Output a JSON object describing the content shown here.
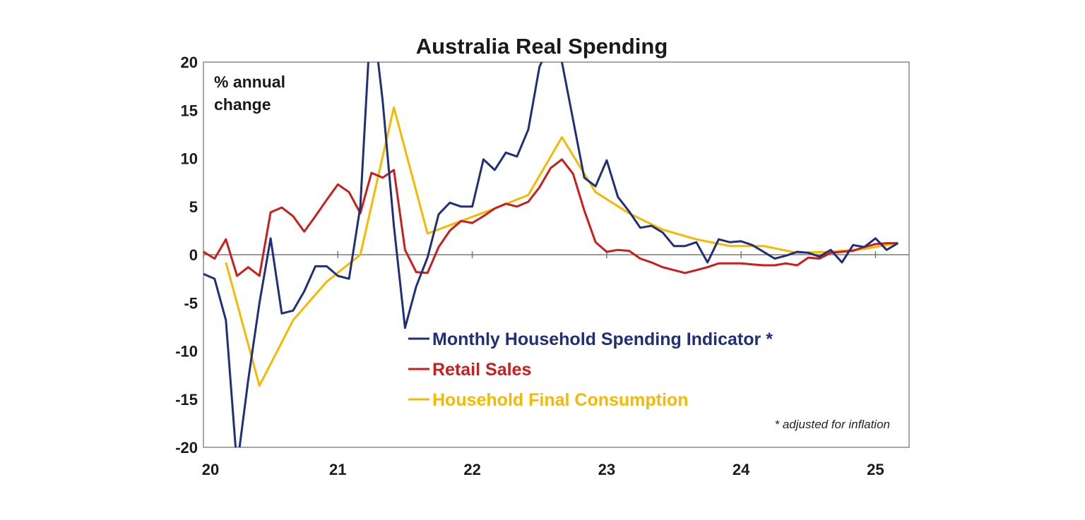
{
  "chart_data": {
    "type": "line",
    "title": "Australia Real Spending",
    "ylabel": "% annual change",
    "ylabel_lines": [
      "% annual",
      "change"
    ],
    "footnote": "* adjusted for inflation",
    "xlim": [
      2020,
      2025.25
    ],
    "ylim": [
      -20,
      20
    ],
    "yticks": [
      20,
      15,
      10,
      5,
      0,
      -5,
      -10,
      -15,
      -20
    ],
    "xticks": [
      {
        "value": 2020,
        "label": "20"
      },
      {
        "value": 2021,
        "label": "21"
      },
      {
        "value": 2022,
        "label": "22"
      },
      {
        "value": 2023,
        "label": "23"
      },
      {
        "value": 2024,
        "label": "24"
      },
      {
        "value": 2025,
        "label": "25"
      }
    ],
    "grid": false,
    "legend_position": "bottom-center",
    "series": [
      {
        "name": "Monthly Household Spending Indicator *",
        "color": "#1f2f7a",
        "x": [
          2020.0,
          2020.083,
          2020.167,
          2020.25,
          2020.333,
          2020.417,
          2020.5,
          2020.583,
          2020.667,
          2020.75,
          2020.833,
          2020.917,
          2021.0,
          2021.083,
          2021.167,
          2021.25,
          2021.333,
          2021.417,
          2021.5,
          2021.583,
          2021.667,
          2021.75,
          2021.833,
          2021.917,
          2022.0,
          2022.083,
          2022.167,
          2022.25,
          2022.333,
          2022.417,
          2022.5,
          2022.583,
          2022.667,
          2022.75,
          2022.833,
          2022.917,
          2023.0,
          2023.083,
          2023.167,
          2023.25,
          2023.333,
          2023.417,
          2023.5,
          2023.583,
          2023.667,
          2023.75,
          2023.833,
          2023.917,
          2024.0,
          2024.083,
          2024.167,
          2024.25,
          2024.333,
          2024.417,
          2024.5,
          2024.583,
          2024.667,
          2024.75,
          2024.833,
          2024.917,
          2025.0,
          2025.083,
          2025.167
        ],
        "values": [
          -2.0,
          -2.5,
          -6.8,
          -22.0,
          -13.0,
          -5.0,
          1.7,
          -6.1,
          -5.8,
          -3.8,
          -1.2,
          -1.2,
          -2.2,
          -2.5,
          5.0,
          26.0,
          16.0,
          3.0,
          -7.6,
          -3.3,
          -0.3,
          4.2,
          5.4,
          5.0,
          5.0,
          9.9,
          8.8,
          10.6,
          10.2,
          13.0,
          19.5,
          22.0,
          20.0,
          14.0,
          8.0,
          7.1,
          9.8,
          6.0,
          4.5,
          2.8,
          3.0,
          2.3,
          0.9,
          0.9,
          1.3,
          -0.8,
          1.6,
          1.3,
          1.4,
          1.0,
          0.3,
          -0.4,
          -0.1,
          0.3,
          0.2,
          -0.2,
          0.5,
          -0.8,
          1.0,
          0.8,
          1.7,
          0.5,
          1.2
        ]
      },
      {
        "name": "Retail Sales",
        "color": "#cc1d1d",
        "x": [
          2020.0,
          2020.083,
          2020.167,
          2020.25,
          2020.333,
          2020.417,
          2020.5,
          2020.583,
          2020.667,
          2020.75,
          2020.833,
          2020.917,
          2021.0,
          2021.083,
          2021.167,
          2021.25,
          2021.333,
          2021.417,
          2021.5,
          2021.583,
          2021.667,
          2021.75,
          2021.833,
          2021.917,
          2022.0,
          2022.083,
          2022.167,
          2022.25,
          2022.333,
          2022.417,
          2022.5,
          2022.583,
          2022.667,
          2022.75,
          2022.833,
          2022.917,
          2023.0,
          2023.083,
          2023.167,
          2023.25,
          2023.333,
          2023.417,
          2023.5,
          2023.583,
          2023.667,
          2023.75,
          2023.833,
          2023.917,
          2024.0,
          2024.083,
          2024.167,
          2024.25,
          2024.333,
          2024.417,
          2024.5,
          2024.583,
          2024.667,
          2024.75,
          2024.833,
          2024.917,
          2025.0,
          2025.083,
          2025.167
        ],
        "values": [
          0.3,
          -0.4,
          1.6,
          -2.2,
          -1.3,
          -2.2,
          4.4,
          4.9,
          4.0,
          2.4,
          4.0,
          5.7,
          7.3,
          6.5,
          4.3,
          8.5,
          8.0,
          8.8,
          0.5,
          -1.8,
          -1.9,
          0.8,
          2.5,
          3.5,
          3.3,
          4.0,
          4.8,
          5.3,
          5.0,
          5.5,
          7.0,
          9.0,
          9.9,
          8.4,
          4.6,
          1.3,
          0.3,
          0.5,
          0.4,
          -0.4,
          -0.8,
          -1.3,
          -1.6,
          -1.9,
          -1.6,
          -1.3,
          -0.9,
          -0.9,
          -0.9,
          -1.0,
          -1.1,
          -1.1,
          -0.9,
          -1.1,
          -0.3,
          -0.4,
          0.2,
          0.3,
          0.4,
          0.8,
          1.1,
          1.2,
          1.2
        ]
      },
      {
        "name": "Household Final Consumption",
        "color": "#f7b900",
        "x": [
          2020.167,
          2020.417,
          2020.667,
          2020.917,
          2021.167,
          2021.417,
          2021.667,
          2021.917,
          2022.167,
          2022.417,
          2022.667,
          2022.917,
          2023.167,
          2023.417,
          2023.667,
          2023.917,
          2024.167,
          2024.417,
          2024.667,
          2024.917,
          2025.167
        ],
        "values": [
          -0.8,
          -13.6,
          -6.8,
          -2.8,
          0.0,
          15.3,
          2.2,
          3.5,
          4.8,
          6.2,
          12.2,
          6.5,
          4.3,
          2.6,
          1.6,
          0.9,
          0.9,
          0.2,
          0.3,
          0.6,
          1.2
        ]
      }
    ]
  }
}
